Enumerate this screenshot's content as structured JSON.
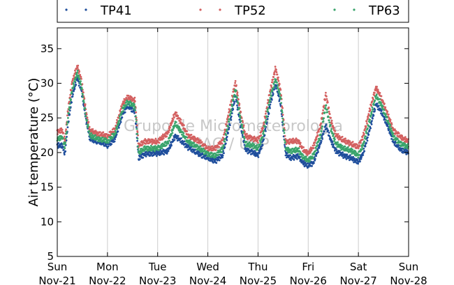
{
  "chart_data": {
    "type": "scatter",
    "ylabel": "Air temperature (°C)",
    "ylim": [
      5,
      38
    ],
    "yticks": [
      5,
      10,
      15,
      20,
      25,
      30,
      35
    ],
    "xlim": [
      "2016-11-21",
      "2016-11-28"
    ],
    "xticks": [
      {
        "day": "Sun",
        "date": "Nov-21"
      },
      {
        "day": "Mon",
        "date": "Nov-22"
      },
      {
        "day": "Tue",
        "date": "Nov-23"
      },
      {
        "day": "Wed",
        "date": "Nov-24"
      },
      {
        "day": "Thu",
        "date": "Nov-25"
      },
      {
        "day": "Fri",
        "date": "Nov-26"
      },
      {
        "day": "Sat",
        "date": "Nov-27"
      },
      {
        "day": "Sun",
        "date": "Nov-28"
      }
    ],
    "grid": "vertical",
    "legend": "top",
    "watermark": [
      "Grupo de Micrometeorologia",
      "IAG / USP"
    ],
    "series": [
      {
        "name": "TP41",
        "color": "#1f4e9c",
        "points": [
          [
            0.0,
            21.0
          ],
          [
            0.1,
            21.0
          ],
          [
            0.15,
            19.7
          ],
          [
            0.22,
            24.5
          ],
          [
            0.3,
            28.2
          ],
          [
            0.4,
            30.8
          ],
          [
            0.48,
            29.0
          ],
          [
            0.58,
            24.5
          ],
          [
            0.65,
            22.0
          ],
          [
            0.8,
            21.6
          ],
          [
            0.95,
            21.3
          ],
          [
            1.0,
            21.0
          ],
          [
            1.15,
            22.0
          ],
          [
            1.3,
            25.5
          ],
          [
            1.4,
            26.8
          ],
          [
            1.55,
            25.8
          ],
          [
            1.62,
            19.2
          ],
          [
            1.75,
            19.8
          ],
          [
            2.0,
            19.9
          ],
          [
            2.2,
            20.2
          ],
          [
            2.35,
            22.4
          ],
          [
            2.45,
            21.8
          ],
          [
            2.6,
            20.8
          ],
          [
            2.85,
            19.7
          ],
          [
            3.0,
            19.2
          ],
          [
            3.15,
            18.8
          ],
          [
            3.3,
            19.6
          ],
          [
            3.45,
            24.5
          ],
          [
            3.55,
            28.3
          ],
          [
            3.65,
            24.0
          ],
          [
            3.75,
            20.4
          ],
          [
            3.9,
            20.0
          ],
          [
            4.0,
            19.6
          ],
          [
            4.1,
            21.5
          ],
          [
            4.25,
            27.2
          ],
          [
            4.35,
            30.0
          ],
          [
            4.45,
            27.0
          ],
          [
            4.55,
            19.8
          ],
          [
            4.65,
            19.2
          ],
          [
            4.8,
            19.5
          ],
          [
            4.9,
            18.5
          ],
          [
            5.0,
            18.1
          ],
          [
            5.1,
            18.5
          ],
          [
            5.25,
            21.5
          ],
          [
            5.35,
            23.9
          ],
          [
            5.45,
            21.8
          ],
          [
            5.55,
            20.2
          ],
          [
            5.7,
            19.6
          ],
          [
            5.85,
            19.2
          ],
          [
            6.0,
            18.6
          ],
          [
            6.1,
            20.0
          ],
          [
            6.25,
            24.0
          ],
          [
            6.35,
            27.0
          ],
          [
            6.45,
            26.0
          ],
          [
            6.6,
            23.5
          ],
          [
            6.7,
            21.5
          ],
          [
            6.85,
            20.4
          ],
          [
            7.0,
            20.0
          ]
        ]
      },
      {
        "name": "TP52",
        "color": "#d36060",
        "points": [
          [
            0.0,
            23.0
          ],
          [
            0.1,
            23.2
          ],
          [
            0.15,
            21.7
          ],
          [
            0.22,
            26.5
          ],
          [
            0.3,
            30.3
          ],
          [
            0.4,
            32.5
          ],
          [
            0.48,
            30.5
          ],
          [
            0.58,
            25.6
          ],
          [
            0.65,
            23.2
          ],
          [
            0.8,
            22.7
          ],
          [
            0.95,
            22.5
          ],
          [
            1.0,
            22.3
          ],
          [
            1.15,
            23.4
          ],
          [
            1.3,
            27.0
          ],
          [
            1.4,
            28.0
          ],
          [
            1.55,
            27.5
          ],
          [
            1.62,
            21.0
          ],
          [
            1.75,
            21.6
          ],
          [
            2.0,
            21.6
          ],
          [
            2.2,
            22.8
          ],
          [
            2.35,
            25.7
          ],
          [
            2.45,
            24.6
          ],
          [
            2.6,
            22.5
          ],
          [
            2.85,
            21.5
          ],
          [
            3.0,
            20.5
          ],
          [
            3.15,
            20.6
          ],
          [
            3.3,
            21.8
          ],
          [
            3.45,
            26.8
          ],
          [
            3.55,
            30.2
          ],
          [
            3.65,
            25.8
          ],
          [
            3.75,
            22.4
          ],
          [
            3.9,
            22.0
          ],
          [
            4.0,
            21.8
          ],
          [
            4.1,
            23.6
          ],
          [
            4.25,
            29.2
          ],
          [
            4.35,
            32.2
          ],
          [
            4.45,
            29.0
          ],
          [
            4.55,
            21.6
          ],
          [
            4.65,
            21.6
          ],
          [
            4.8,
            21.7
          ],
          [
            4.9,
            20.4
          ],
          [
            5.0,
            19.9
          ],
          [
            5.1,
            20.8
          ],
          [
            5.25,
            24.0
          ],
          [
            5.35,
            28.5
          ],
          [
            5.45,
            24.7
          ],
          [
            5.55,
            22.5
          ],
          [
            5.7,
            21.8
          ],
          [
            5.85,
            21.3
          ],
          [
            6.0,
            20.8
          ],
          [
            6.1,
            22.5
          ],
          [
            6.25,
            26.8
          ],
          [
            6.35,
            29.4
          ],
          [
            6.45,
            28.0
          ],
          [
            6.6,
            25.2
          ],
          [
            6.7,
            23.2
          ],
          [
            6.85,
            22.2
          ],
          [
            7.0,
            21.6
          ]
        ]
      },
      {
        "name": "TP63",
        "color": "#3aa46c",
        "points": [
          [
            0.0,
            22.0
          ],
          [
            0.1,
            22.2
          ],
          [
            0.15,
            20.7
          ],
          [
            0.22,
            25.5
          ],
          [
            0.3,
            29.2
          ],
          [
            0.4,
            31.6
          ],
          [
            0.48,
            29.6
          ],
          [
            0.58,
            24.8
          ],
          [
            0.65,
            22.5
          ],
          [
            0.8,
            22.0
          ],
          [
            0.95,
            21.8
          ],
          [
            1.0,
            21.6
          ],
          [
            1.15,
            22.7
          ],
          [
            1.3,
            26.2
          ],
          [
            1.4,
            27.3
          ],
          [
            1.55,
            26.6
          ],
          [
            1.62,
            20.0
          ],
          [
            1.75,
            20.6
          ],
          [
            2.0,
            20.6
          ],
          [
            2.2,
            21.4
          ],
          [
            2.35,
            24.2
          ],
          [
            2.45,
            23.2
          ],
          [
            2.6,
            21.6
          ],
          [
            2.85,
            20.5
          ],
          [
            3.0,
            19.8
          ],
          [
            3.15,
            19.5
          ],
          [
            3.3,
            20.6
          ],
          [
            3.45,
            25.6
          ],
          [
            3.55,
            29.2
          ],
          [
            3.65,
            24.9
          ],
          [
            3.75,
            21.2
          ],
          [
            3.9,
            21.0
          ],
          [
            4.0,
            20.6
          ],
          [
            4.1,
            22.5
          ],
          [
            4.25,
            28.2
          ],
          [
            4.35,
            30.6
          ],
          [
            4.45,
            28.0
          ],
          [
            4.55,
            20.6
          ],
          [
            4.65,
            20.2
          ],
          [
            4.8,
            20.4
          ],
          [
            4.9,
            19.3
          ],
          [
            5.0,
            18.9
          ],
          [
            5.1,
            19.5
          ],
          [
            5.25,
            22.6
          ],
          [
            5.35,
            26.8
          ],
          [
            5.45,
            23.4
          ],
          [
            5.55,
            21.3
          ],
          [
            5.7,
            20.6
          ],
          [
            5.85,
            20.3
          ],
          [
            6.0,
            19.6
          ],
          [
            6.1,
            21.2
          ],
          [
            6.25,
            25.4
          ],
          [
            6.35,
            28.2
          ],
          [
            6.45,
            27.0
          ],
          [
            6.6,
            24.3
          ],
          [
            6.7,
            22.3
          ],
          [
            6.85,
            21.2
          ],
          [
            7.0,
            20.8
          ]
        ]
      }
    ]
  }
}
